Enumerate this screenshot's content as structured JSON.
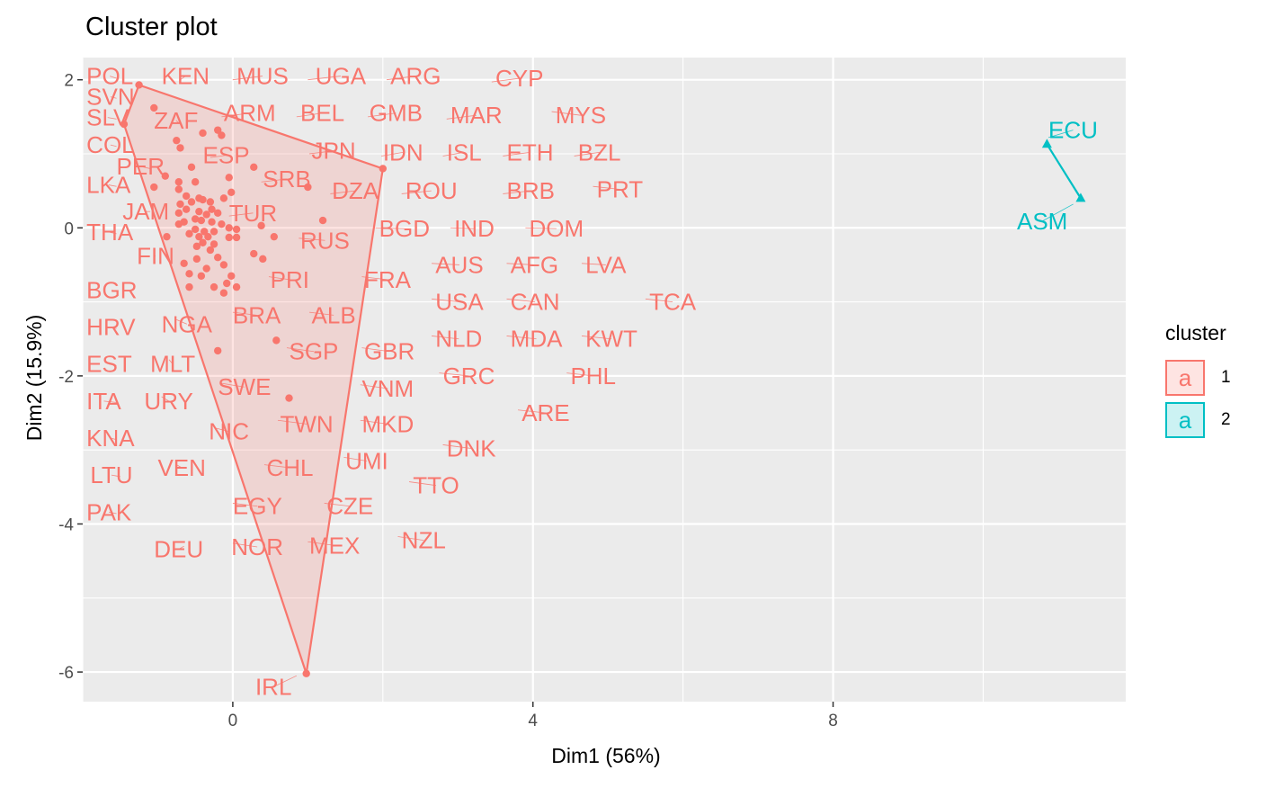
{
  "chart_data": {
    "type": "scatter",
    "title": "Cluster plot",
    "xlabel": "Dim1 (56%)",
    "ylabel": "Dim2 (15.9%)",
    "xlim": [
      -2.0,
      11.9
    ],
    "ylim": [
      -6.4,
      2.3
    ],
    "xticks": [
      0,
      4,
      8
    ],
    "yticks": [
      2,
      0,
      -2,
      -4,
      -6
    ],
    "grid": true,
    "legend_title": "cluster",
    "legend_position": "right",
    "colors": {
      "1": "#F8766D",
      "2": "#00BFC4"
    },
    "hull_1": [
      [
        -1.25,
        1.93
      ],
      [
        -1.45,
        1.4
      ],
      [
        0.98,
        -6.02
      ],
      [
        2.0,
        0.8
      ]
    ],
    "hull_2": [
      [
        10.85,
        1.13
      ],
      [
        11.3,
        0.4
      ]
    ],
    "series": [
      {
        "name": "1",
        "points": [
          {
            "x": -1.25,
            "y": 1.93
          },
          {
            "x": -1.45,
            "y": 1.4
          },
          {
            "x": -1.05,
            "y": 1.62
          },
          {
            "x": -0.75,
            "y": 1.18
          },
          {
            "x": -0.7,
            "y": 1.08
          },
          {
            "x": -0.4,
            "y": 1.28
          },
          {
            "x": -0.2,
            "y": 1.32
          },
          {
            "x": -0.15,
            "y": 1.25
          },
          {
            "x": -0.55,
            "y": 0.82
          },
          {
            "x": 0.28,
            "y": 0.82
          },
          {
            "x": 2.0,
            "y": 0.8
          },
          {
            "x": -0.9,
            "y": 0.7
          },
          {
            "x": -0.72,
            "y": 0.62
          },
          {
            "x": -0.5,
            "y": 0.62
          },
          {
            "x": -0.05,
            "y": 0.68
          },
          {
            "x": -1.05,
            "y": 0.55
          },
          {
            "x": -0.72,
            "y": 0.52
          },
          {
            "x": 1.0,
            "y": 0.55
          },
          {
            "x": -0.02,
            "y": 0.48
          },
          {
            "x": -0.62,
            "y": 0.43
          },
          {
            "x": -0.45,
            "y": 0.4
          },
          {
            "x": -0.4,
            "y": 0.38
          },
          {
            "x": -0.3,
            "y": 0.35
          },
          {
            "x": -0.12,
            "y": 0.4
          },
          {
            "x": -0.55,
            "y": 0.35
          },
          {
            "x": -0.7,
            "y": 0.32
          },
          {
            "x": -0.62,
            "y": 0.25
          },
          {
            "x": -0.45,
            "y": 0.22
          },
          {
            "x": -0.28,
            "y": 0.25
          },
          {
            "x": -0.35,
            "y": 0.18
          },
          {
            "x": -0.2,
            "y": 0.2
          },
          {
            "x": -0.72,
            "y": 0.2
          },
          {
            "x": -0.5,
            "y": 0.12
          },
          {
            "x": -0.42,
            "y": 0.1
          },
          {
            "x": -0.65,
            "y": 0.08
          },
          {
            "x": -0.28,
            "y": 0.08
          },
          {
            "x": -0.15,
            "y": 0.05
          },
          {
            "x": 1.2,
            "y": 0.1
          },
          {
            "x": -0.72,
            "y": 0.05
          },
          {
            "x": -0.05,
            "y": 0.0
          },
          {
            "x": 0.05,
            "y": -0.02
          },
          {
            "x": 0.38,
            "y": 0.03
          },
          {
            "x": -0.5,
            "y": -0.02
          },
          {
            "x": -0.38,
            "y": -0.05
          },
          {
            "x": -0.25,
            "y": -0.05
          },
          {
            "x": -0.58,
            "y": -0.08
          },
          {
            "x": -0.88,
            "y": -0.12
          },
          {
            "x": -0.45,
            "y": -0.12
          },
          {
            "x": -0.33,
            "y": -0.12
          },
          {
            "x": -0.05,
            "y": -0.13
          },
          {
            "x": 0.05,
            "y": -0.13
          },
          {
            "x": 0.55,
            "y": -0.12
          },
          {
            "x": -0.4,
            "y": -0.2
          },
          {
            "x": -0.25,
            "y": -0.22
          },
          {
            "x": -0.48,
            "y": -0.25
          },
          {
            "x": -0.3,
            "y": -0.3
          },
          {
            "x": 0.28,
            "y": -0.35
          },
          {
            "x": 0.4,
            "y": -0.42
          },
          {
            "x": -0.2,
            "y": -0.4
          },
          {
            "x": -0.48,
            "y": -0.42
          },
          {
            "x": -0.65,
            "y": -0.48
          },
          {
            "x": -0.35,
            "y": -0.55
          },
          {
            "x": -0.12,
            "y": -0.5
          },
          {
            "x": -0.58,
            "y": -0.62
          },
          {
            "x": -0.42,
            "y": -0.65
          },
          {
            "x": -0.02,
            "y": -0.65
          },
          {
            "x": -0.08,
            "y": -0.75
          },
          {
            "x": 0.05,
            "y": -0.8
          },
          {
            "x": -0.25,
            "y": -0.8
          },
          {
            "x": -0.58,
            "y": -0.8
          },
          {
            "x": -0.12,
            "y": -0.88
          },
          {
            "x": 0.58,
            "y": -1.52
          },
          {
            "x": -0.2,
            "y": -1.66
          },
          {
            "x": 0.75,
            "y": -2.3
          },
          {
            "x": 0.98,
            "y": -6.02
          }
        ]
      },
      {
        "name": "2",
        "points": [
          {
            "x": 10.85,
            "y": 1.13
          },
          {
            "x": 11.3,
            "y": 0.4
          }
        ]
      }
    ],
    "labels": [
      {
        "text": "POL",
        "x": -1.95,
        "y": 2.05,
        "lx": -1.55,
        "ly": 2.02,
        "cluster": "1"
      },
      {
        "text": "SVN",
        "x": -1.95,
        "y": 1.77,
        "lx": -1.55,
        "ly": 1.75,
        "cluster": "1"
      },
      {
        "text": "SLV",
        "x": -1.95,
        "y": 1.49,
        "lx": -1.55,
        "ly": 1.47,
        "cluster": "1"
      },
      {
        "text": "COL",
        "x": -1.95,
        "y": 1.12,
        "lx": -1.55,
        "ly": 1.1,
        "cluster": "1"
      },
      {
        "text": "LKA",
        "x": -1.95,
        "y": 0.58,
        "lx": -1.55,
        "ly": 0.56,
        "cluster": "1"
      },
      {
        "text": "THA",
        "x": -1.95,
        "y": -0.06,
        "lx": -1.55,
        "ly": -0.08,
        "cluster": "1"
      },
      {
        "text": "BGR",
        "x": -1.95,
        "y": -0.84,
        "lx": -1.55,
        "ly": -0.86,
        "cluster": "1"
      },
      {
        "text": "HRV",
        "x": -1.95,
        "y": -1.34,
        "lx": -1.55,
        "ly": -1.36,
        "cluster": "1"
      },
      {
        "text": "EST",
        "x": -1.95,
        "y": -1.84,
        "lx": -1.55,
        "ly": -1.86,
        "cluster": "1"
      },
      {
        "text": "ITA",
        "x": -1.95,
        "y": -2.34,
        "lx": -1.55,
        "ly": -2.36,
        "cluster": "1"
      },
      {
        "text": "KNA",
        "x": -1.95,
        "y": -2.84,
        "lx": -1.55,
        "ly": -2.86,
        "cluster": "1"
      },
      {
        "text": "LTU",
        "x": -1.9,
        "y": -3.34,
        "lx": -1.5,
        "ly": -3.36,
        "cluster": "1"
      },
      {
        "text": "PAK",
        "x": -1.95,
        "y": -3.84,
        "lx": -1.55,
        "ly": -3.86,
        "cluster": "1"
      },
      {
        "text": "KEN",
        "x": -0.95,
        "y": 2.05,
        "lx": -0.7,
        "ly": 2.0,
        "cluster": "1"
      },
      {
        "text": "MUS",
        "x": 0.05,
        "y": 2.05,
        "lx": 0.0,
        "ly": 2.0,
        "cluster": "1"
      },
      {
        "text": "UGA",
        "x": 1.1,
        "y": 2.05,
        "lx": 1.0,
        "ly": 2.0,
        "cluster": "1"
      },
      {
        "text": "ARG",
        "x": 2.1,
        "y": 2.05,
        "lx": 2.05,
        "ly": 2.0,
        "cluster": "1"
      },
      {
        "text": "CYP",
        "x": 3.5,
        "y": 2.02,
        "lx": 3.45,
        "ly": 1.97,
        "cluster": "1"
      },
      {
        "text": "ZAF",
        "x": -1.05,
        "y": 1.45,
        "lx": -0.72,
        "ly": 1.42,
        "cluster": "1"
      },
      {
        "text": "ARM",
        "x": -0.12,
        "y": 1.55,
        "lx": -0.15,
        "ly": 1.5,
        "cluster": "1"
      },
      {
        "text": "BEL",
        "x": 0.9,
        "y": 1.55,
        "lx": 0.85,
        "ly": 1.5,
        "cluster": "1"
      },
      {
        "text": "GMB",
        "x": 1.82,
        "y": 1.55,
        "lx": 1.8,
        "ly": 1.5,
        "cluster": "1"
      },
      {
        "text": "MAR",
        "x": 2.9,
        "y": 1.52,
        "lx": 2.85,
        "ly": 1.47,
        "cluster": "1"
      },
      {
        "text": "MYS",
        "x": 4.3,
        "y": 1.52,
        "lx": 4.25,
        "ly": 1.57,
        "cluster": "1"
      },
      {
        "text": "ESP",
        "x": -0.4,
        "y": 0.98,
        "lx": -0.3,
        "ly": 0.95,
        "cluster": "1"
      },
      {
        "text": "JPN",
        "x": 1.05,
        "y": 1.04,
        "lx": 1.02,
        "ly": 1.0,
        "cluster": "1"
      },
      {
        "text": "IDN",
        "x": 2.0,
        "y": 1.02,
        "lx": 1.98,
        "ly": 0.97,
        "cluster": "1"
      },
      {
        "text": "ISL",
        "x": 2.85,
        "y": 1.02,
        "lx": 2.8,
        "ly": 0.97,
        "cluster": "1"
      },
      {
        "text": "ETH",
        "x": 3.65,
        "y": 1.02,
        "lx": 3.6,
        "ly": 0.97,
        "cluster": "1"
      },
      {
        "text": "BZL",
        "x": 4.6,
        "y": 1.02,
        "lx": 4.55,
        "ly": 0.97,
        "cluster": "1"
      },
      {
        "text": "PER",
        "x": -1.55,
        "y": 0.83,
        "lx": -1.1,
        "ly": 0.8,
        "cluster": "1"
      },
      {
        "text": "SRB",
        "x": 0.4,
        "y": 0.66,
        "lx": 0.38,
        "ly": 0.62,
        "cluster": "1"
      },
      {
        "text": "DZA",
        "x": 1.32,
        "y": 0.5,
        "lx": 1.3,
        "ly": 0.46,
        "cluster": "1"
      },
      {
        "text": "ROU",
        "x": 2.3,
        "y": 0.5,
        "lx": 2.25,
        "ly": 0.46,
        "cluster": "1"
      },
      {
        "text": "BRB",
        "x": 3.65,
        "y": 0.5,
        "lx": 3.6,
        "ly": 0.46,
        "cluster": "1"
      },
      {
        "text": "PRT",
        "x": 4.85,
        "y": 0.52,
        "lx": 4.8,
        "ly": 0.56,
        "cluster": "1"
      },
      {
        "text": "JAM",
        "x": -1.47,
        "y": 0.22,
        "lx": -1.1,
        "ly": 0.22,
        "cluster": "1"
      },
      {
        "text": "TUR",
        "x": -0.05,
        "y": 0.2,
        "lx": -0.05,
        "ly": 0.16,
        "cluster": "1"
      },
      {
        "text": "BGD",
        "x": 1.95,
        "y": -0.01,
        "lx": 1.9,
        "ly": 0.0,
        "cluster": "1"
      },
      {
        "text": "IND",
        "x": 2.95,
        "y": -0.01,
        "lx": 2.9,
        "ly": 0.0,
        "cluster": "1"
      },
      {
        "text": "DOM",
        "x": 3.95,
        "y": -0.01,
        "lx": 3.9,
        "ly": 0.0,
        "cluster": "1"
      },
      {
        "text": "RUS",
        "x": 0.9,
        "y": -0.17,
        "lx": 0.88,
        "ly": -0.14,
        "cluster": "1"
      },
      {
        "text": "FIN",
        "x": -1.28,
        "y": -0.38,
        "lx": -1.05,
        "ly": -0.38,
        "cluster": "1"
      },
      {
        "text": "AUS",
        "x": 2.7,
        "y": -0.5,
        "lx": 2.65,
        "ly": -0.48,
        "cluster": "1"
      },
      {
        "text": "AFG",
        "x": 3.7,
        "y": -0.5,
        "lx": 3.65,
        "ly": -0.48,
        "cluster": "1"
      },
      {
        "text": "LVA",
        "x": 4.7,
        "y": -0.5,
        "lx": 4.65,
        "ly": -0.48,
        "cluster": "1"
      },
      {
        "text": "PRI",
        "x": 0.5,
        "y": -0.7,
        "lx": 0.48,
        "ly": -0.66,
        "cluster": "1"
      },
      {
        "text": "FRA",
        "x": 1.75,
        "y": -0.7,
        "lx": 1.72,
        "ly": -0.66,
        "cluster": "1"
      },
      {
        "text": "TCA",
        "x": 5.55,
        "y": -1.0,
        "lx": 5.5,
        "ly": -0.96,
        "cluster": "1"
      },
      {
        "text": "USA",
        "x": 2.7,
        "y": -1.0,
        "lx": 2.65,
        "ly": -0.96,
        "cluster": "1"
      },
      {
        "text": "CAN",
        "x": 3.7,
        "y": -1.0,
        "lx": 3.65,
        "ly": -0.96,
        "cluster": "1"
      },
      {
        "text": "NGA",
        "x": -0.95,
        "y": -1.3,
        "lx": -0.75,
        "ly": -1.24,
        "cluster": "1"
      },
      {
        "text": "BRA",
        "x": 0.0,
        "y": -1.18,
        "lx": 0.0,
        "ly": -1.14,
        "cluster": "1"
      },
      {
        "text": "ALB",
        "x": 1.05,
        "y": -1.18,
        "lx": 1.02,
        "ly": -1.14,
        "cluster": "1"
      },
      {
        "text": "KWT",
        "x": 4.7,
        "y": -1.5,
        "lx": 4.65,
        "ly": -1.46,
        "cluster": "1"
      },
      {
        "text": "NLD",
        "x": 2.7,
        "y": -1.5,
        "lx": 2.65,
        "ly": -1.46,
        "cluster": "1"
      },
      {
        "text": "MDA",
        "x": 3.7,
        "y": -1.5,
        "lx": 3.65,
        "ly": -1.46,
        "cluster": "1"
      },
      {
        "text": "SGP",
        "x": 0.75,
        "y": -1.67,
        "lx": 0.72,
        "ly": -1.62,
        "cluster": "1"
      },
      {
        "text": "GBR",
        "x": 1.75,
        "y": -1.67,
        "lx": 1.72,
        "ly": -1.62,
        "cluster": "1"
      },
      {
        "text": "MLT",
        "x": -1.1,
        "y": -1.84,
        "lx": -0.85,
        "ly": -1.78,
        "cluster": "1"
      },
      {
        "text": "PHL",
        "x": 4.5,
        "y": -2.0,
        "lx": 4.45,
        "ly": -1.96,
        "cluster": "1"
      },
      {
        "text": "GRC",
        "x": 2.8,
        "y": -2.0,
        "lx": 2.75,
        "ly": -1.96,
        "cluster": "1"
      },
      {
        "text": "VNM",
        "x": 1.72,
        "y": -2.17,
        "lx": 1.7,
        "ly": -2.12,
        "cluster": "1"
      },
      {
        "text": "SWE",
        "x": -0.2,
        "y": -2.15,
        "lx": -0.15,
        "ly": -2.1,
        "cluster": "1"
      },
      {
        "text": "URY",
        "x": -1.18,
        "y": -2.34,
        "lx": -0.95,
        "ly": -2.28,
        "cluster": "1"
      },
      {
        "text": "ARE",
        "x": 3.85,
        "y": -2.5,
        "lx": 3.8,
        "ly": -2.46,
        "cluster": "1"
      },
      {
        "text": "TWN",
        "x": 0.63,
        "y": -2.65,
        "lx": 0.6,
        "ly": -2.6,
        "cluster": "1"
      },
      {
        "text": "MKD",
        "x": 1.72,
        "y": -2.65,
        "lx": 1.7,
        "ly": -2.6,
        "cluster": "1"
      },
      {
        "text": "NIC",
        "x": -0.32,
        "y": -2.75,
        "lx": -0.25,
        "ly": -2.7,
        "cluster": "1"
      },
      {
        "text": "DNK",
        "x": 2.85,
        "y": -2.98,
        "lx": 2.8,
        "ly": -2.93,
        "cluster": "1"
      },
      {
        "text": "UMI",
        "x": 1.5,
        "y": -3.15,
        "lx": 1.48,
        "ly": -3.1,
        "cluster": "1"
      },
      {
        "text": "VEN",
        "x": -1.0,
        "y": -3.24,
        "lx": -0.75,
        "ly": -3.2,
        "cluster": "1"
      },
      {
        "text": "CHL",
        "x": 0.45,
        "y": -3.24,
        "lx": 0.42,
        "ly": -3.2,
        "cluster": "1"
      },
      {
        "text": "TTO",
        "x": 2.4,
        "y": -3.48,
        "lx": 2.35,
        "ly": -3.43,
        "cluster": "1"
      },
      {
        "text": "EGY",
        "x": 0.0,
        "y": -3.76,
        "lx": 0.0,
        "ly": -3.72,
        "cluster": "1"
      },
      {
        "text": "CZE",
        "x": 1.25,
        "y": -3.76,
        "lx": 1.22,
        "ly": -3.72,
        "cluster": "1"
      },
      {
        "text": "NZL",
        "x": 2.25,
        "y": -4.22,
        "lx": 2.2,
        "ly": -4.17,
        "cluster": "1"
      },
      {
        "text": "DEU",
        "x": -1.05,
        "y": -4.34,
        "lx": -0.65,
        "ly": -4.3,
        "cluster": "1"
      },
      {
        "text": "NOR",
        "x": -0.02,
        "y": -4.31,
        "lx": 0.0,
        "ly": -4.26,
        "cluster": "1"
      },
      {
        "text": "MEX",
        "x": 1.02,
        "y": -4.29,
        "lx": 1.0,
        "ly": -4.24,
        "cluster": "1"
      },
      {
        "text": "IRL",
        "x": 0.3,
        "y": -6.2,
        "lx": 0.85,
        "ly": -6.05,
        "cluster": "1"
      },
      {
        "text": "ECU",
        "x": 10.87,
        "y": 1.32,
        "lx": 10.87,
        "ly": 1.22,
        "cluster": "2"
      },
      {
        "text": "ASM",
        "x": 10.45,
        "y": 0.09,
        "lx": 11.2,
        "ly": 0.32,
        "cluster": "2"
      }
    ]
  }
}
